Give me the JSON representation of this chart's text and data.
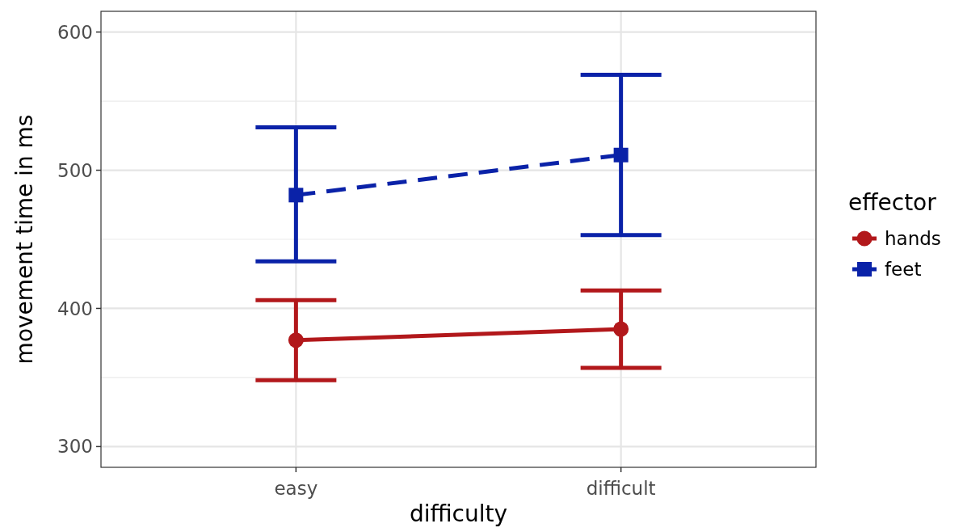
{
  "chart_data": {
    "type": "line",
    "xlabel": "difficulty",
    "ylabel": "movement time in ms",
    "legend_title": "effector",
    "categories": [
      "easy",
      "difficult"
    ],
    "ylim": [
      285,
      615
    ],
    "yticks": [
      300,
      400,
      500,
      600
    ],
    "grid": true,
    "legend": "right",
    "series": [
      {
        "name": "hands",
        "color": "#b2181b",
        "values": [
          377,
          385
        ],
        "errors": [
          [
            348,
            406
          ],
          [
            357,
            413
          ]
        ],
        "marker": "circle",
        "line_style": "solid"
      },
      {
        "name": "feet",
        "color": "#0a22a8",
        "values": [
          482,
          511
        ],
        "errors": [
          [
            434,
            531
          ],
          [
            453,
            569
          ]
        ],
        "marker": "square",
        "line_style": "dashed"
      }
    ]
  }
}
